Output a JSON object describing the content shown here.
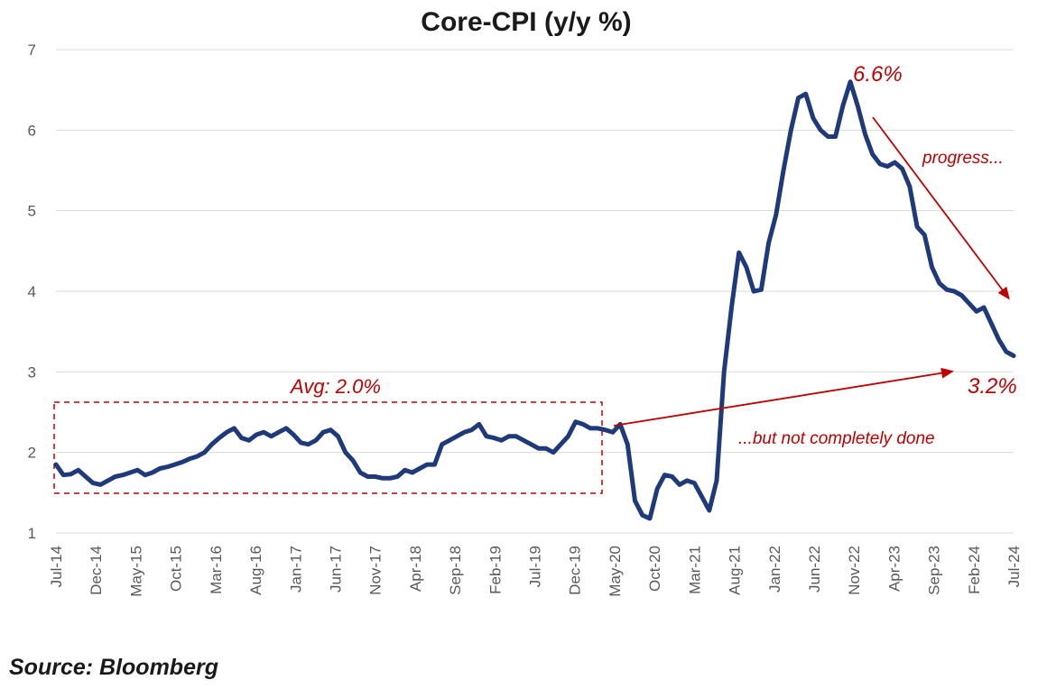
{
  "chart_data": {
    "type": "line",
    "title": "Core-CPI (y/y %)",
    "ylim": [
      1,
      7
    ],
    "yticks": [
      1,
      2,
      3,
      4,
      5,
      6,
      7
    ],
    "grid": true,
    "x_tick_labels": [
      "Jul-14",
      "Dec-14",
      "May-15",
      "Oct-15",
      "Mar-16",
      "Aug-16",
      "Jan-17",
      "Jun-17",
      "Nov-17",
      "Apr-18",
      "Sep-18",
      "Feb-19",
      "Jul-19",
      "Dec-19",
      "May-20",
      "Oct-20",
      "Mar-21",
      "Aug-21",
      "Jan-22",
      "Jun-22",
      "Nov-22",
      "Apr-23",
      "Sep-23",
      "Feb-24",
      "Jul-24"
    ],
    "x_start": "Jul-14",
    "x_end": "Jul-24",
    "series": [
      {
        "color": "#1f3a7a",
        "values": [
          1.85,
          1.72,
          1.73,
          1.78,
          1.7,
          1.62,
          1.6,
          1.65,
          1.7,
          1.72,
          1.75,
          1.78,
          1.72,
          1.75,
          1.8,
          1.82,
          1.85,
          1.88,
          1.92,
          1.95,
          2.0,
          2.1,
          2.18,
          2.25,
          2.3,
          2.18,
          2.15,
          2.22,
          2.25,
          2.2,
          2.25,
          2.3,
          2.22,
          2.12,
          2.1,
          2.15,
          2.25,
          2.28,
          2.2,
          2.0,
          1.9,
          1.75,
          1.7,
          1.7,
          1.68,
          1.68,
          1.7,
          1.78,
          1.75,
          1.8,
          1.85,
          1.85,
          2.1,
          2.15,
          2.2,
          2.25,
          2.28,
          2.35,
          2.2,
          2.18,
          2.15,
          2.2,
          2.2,
          2.15,
          2.1,
          2.05,
          2.05,
          2.0,
          2.1,
          2.2,
          2.38,
          2.35,
          2.3,
          2.3,
          2.28,
          2.25,
          2.35,
          2.1,
          1.4,
          1.22,
          1.18,
          1.55,
          1.72,
          1.7,
          1.6,
          1.65,
          1.62,
          1.45,
          1.28,
          1.65,
          3.0,
          3.8,
          4.48,
          4.3,
          4.0,
          4.02,
          4.6,
          4.95,
          5.5,
          6.0,
          6.4,
          6.45,
          6.15,
          6.0,
          5.92,
          5.92,
          6.3,
          6.6,
          6.3,
          5.95,
          5.7,
          5.58,
          5.55,
          5.6,
          5.52,
          5.3,
          4.8,
          4.7,
          4.3,
          4.1,
          4.02,
          4.0,
          3.95,
          3.85,
          3.75,
          3.8,
          3.6,
          3.4,
          3.25,
          3.2
        ]
      }
    ],
    "annotations": {
      "avg": "Avg: 2.0%",
      "peak": "6.6%",
      "progress": "progress...",
      "latest": "3.2%",
      "not_done": "...but not completely  done"
    },
    "annotation_color": "#c00000"
  },
  "source": "Source: Bloomberg"
}
